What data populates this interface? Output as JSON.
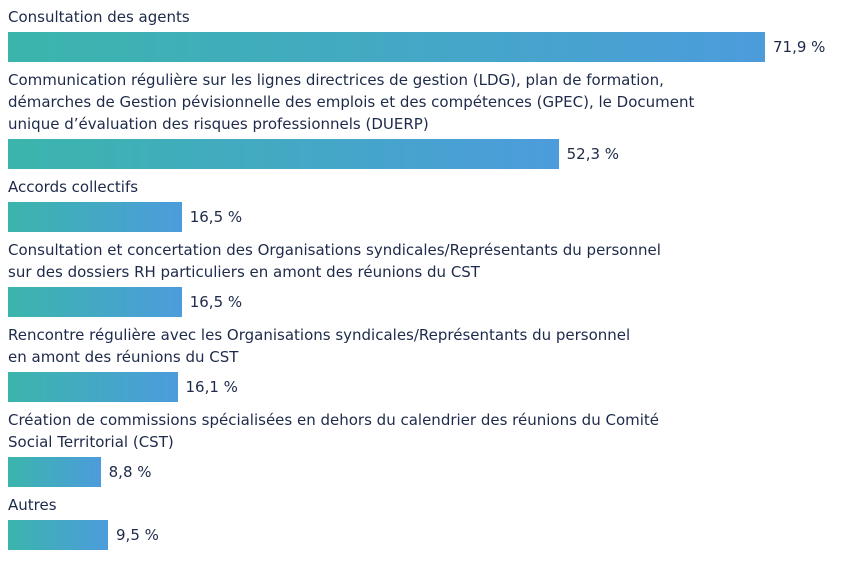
{
  "chart_data": {
    "type": "bar",
    "orientation": "horizontal",
    "categories": [
      "Consultation des agents",
      "Communication régulière sur les lignes directrices de gestion (LDG), plan de formation,\ndémarches de Gestion pévisionnelle des emplois et des compétences (GPEC), le Document\nunique d’évaluation des risques professionnels (DUERP)",
      "Accords collectifs",
      "Consultation et concertation des Organisations syndicales/Représentants du personnel\nsur des dossiers RH particuliers en amont des réunions du CST",
      "Rencontre régulière avec les Organisations syndicales/Représentants du personnel\nen amont des réunions du CST",
      "Création de commissions spécialisées en dehors du calendrier des réunions du Comité\nSocial Territorial (CST)",
      "Autres"
    ],
    "values": [
      71.9,
      52.3,
      16.5,
      16.5,
      16.1,
      8.8,
      9.5
    ],
    "value_labels": [
      "71,9 %",
      "52,3 %",
      "16,5 %",
      "16,5 %",
      "16,1 %",
      "8,8 %",
      "9,5 %"
    ],
    "colors": [
      "#3bb5ac",
      "#4c9cdc"
    ]
  }
}
